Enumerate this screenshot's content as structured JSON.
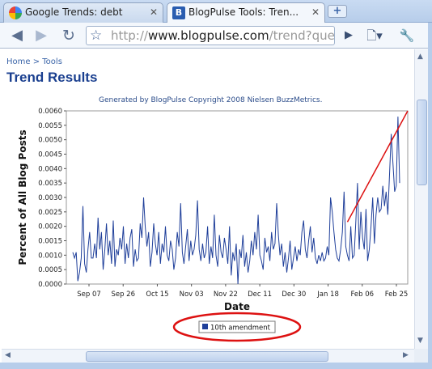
{
  "tabs": [
    {
      "title": "Google Trends: debt",
      "active": false,
      "favicon": "google-favicon-icon"
    },
    {
      "title": "BlogPulse Tools: Tren...",
      "active": true,
      "favicon": "blogpulse-favicon-icon"
    }
  ],
  "toolbar": {
    "url_prefix": "http://",
    "url_domain": "www.blogpulse.com",
    "url_path": "/trend?quer"
  },
  "page": {
    "breadcrumb": "Home > Tools",
    "title": "Trend Results",
    "generated": "Generated by BlogPulse Copyright 2008 Nielsen BuzzMetrics."
  },
  "chart_data": {
    "type": "line",
    "xlabel": "Date",
    "ylabel": "Percent of All Blog Posts",
    "ylim": [
      0,
      0.006
    ],
    "yticks": [
      "0.0000",
      "0.0005",
      "0.0010",
      "0.0015",
      "0.0020",
      "0.0025",
      "0.0030",
      "0.0035",
      "0.0040",
      "0.0045",
      "0.0050",
      "0.0055",
      "0.0060"
    ],
    "xticks": [
      "Sep 07",
      "Sep 26",
      "Oct 15",
      "Nov 03",
      "Nov 22",
      "Dec 11",
      "Dec 30",
      "Jan 18",
      "Feb 06",
      "Feb 25"
    ],
    "legend_position": "bottom-center",
    "series": [
      {
        "name": "10th amendment",
        "color": "#1f3f9a",
        "values": [
          0.0011,
          0.0009,
          0.0011,
          0.0001,
          0.0004,
          0.0009,
          0.0027,
          0.0007,
          0.0004,
          0.0012,
          0.0018,
          0.0009,
          0.0009,
          0.0014,
          0.0009,
          0.0023,
          0.0012,
          0.0018,
          0.0005,
          0.0012,
          0.0021,
          0.001,
          0.0015,
          0.0007,
          0.0022,
          0.0006,
          0.0012,
          0.001,
          0.0016,
          0.0012,
          0.002,
          0.0007,
          0.0014,
          0.0009,
          0.0016,
          0.0019,
          0.0006,
          0.0012,
          0.0008,
          0.0009,
          0.0021,
          0.0016,
          0.003,
          0.002,
          0.0013,
          0.0018,
          0.0006,
          0.0011,
          0.0021,
          0.0014,
          0.001,
          0.0018,
          0.0007,
          0.0014,
          0.0011,
          0.002,
          0.001,
          0.0008,
          0.0015,
          0.0012,
          0.0005,
          0.0009,
          0.0018,
          0.0013,
          0.0028,
          0.0011,
          0.0007,
          0.0013,
          0.0019,
          0.0008,
          0.0015,
          0.001,
          0.0012,
          0.0017,
          0.0029,
          0.0012,
          0.0008,
          0.0014,
          0.0009,
          0.0011,
          0.002,
          0.0007,
          0.0013,
          0.0009,
          0.0024,
          0.001,
          0.0006,
          0.0017,
          0.0011,
          0.0009,
          0.0016,
          0.0012,
          0.0007,
          0.002,
          0.0003,
          0.0011,
          0.0008,
          0.0014,
          0.0,
          0.0012,
          0.0009,
          0.0017,
          0.0006,
          0.0011,
          0.0004,
          0.0008,
          0.0015,
          0.001,
          0.0018,
          0.0012,
          0.0024,
          0.001,
          0.0008,
          0.0005,
          0.0016,
          0.0011,
          0.0013,
          0.0008,
          0.0018,
          0.0012,
          0.0014,
          0.0028,
          0.0017,
          0.001,
          0.0014,
          0.0006,
          0.0011,
          0.0004,
          0.0009,
          0.0015,
          0.0005,
          0.0009,
          0.0013,
          0.0008,
          0.0012,
          0.001,
          0.0018,
          0.0022,
          0.0012,
          0.0009,
          0.0015,
          0.002,
          0.0011,
          0.0016,
          0.0009,
          0.0007,
          0.001,
          0.0008,
          0.0011,
          0.0008,
          0.0009,
          0.0013,
          0.001,
          0.003,
          0.0025,
          0.0018,
          0.0012,
          0.0009,
          0.0008,
          0.0012,
          0.0018,
          0.0032,
          0.0013,
          0.001,
          0.0008,
          0.002,
          0.0009,
          0.001,
          0.0022,
          0.0035,
          0.0012,
          0.0025,
          0.0016,
          0.0012,
          0.0026,
          0.0008,
          0.0012,
          0.002,
          0.003,
          0.0014,
          0.0024,
          0.003,
          0.0025,
          0.0026,
          0.0034,
          0.0027,
          0.0032,
          0.0024,
          0.0038,
          0.0052,
          0.0042,
          0.0032,
          0.0034,
          0.0058,
          0.0035
        ]
      }
    ],
    "annotation_trend_line": {
      "color": "#dd1111",
      "from": {
        "x_index": 163,
        "y": 0.00215
      },
      "to": {
        "x_index": 198,
        "y": 0.006
      }
    },
    "legend_highlight_color": "#dd1111"
  }
}
